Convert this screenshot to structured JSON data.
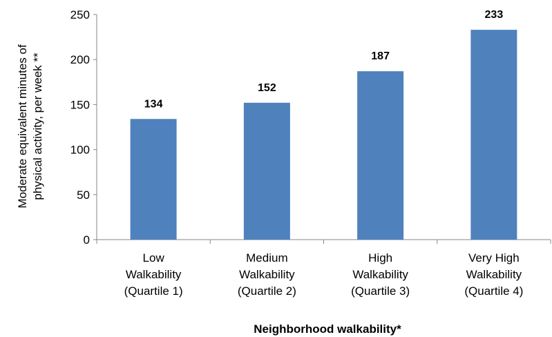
{
  "chart_data": {
    "type": "bar",
    "categories": [
      [
        "Low",
        "Walkability",
        "(Quartile 1)"
      ],
      [
        "Medium",
        "Walkability",
        "(Quartile 2)"
      ],
      [
        "High",
        "Walkability",
        "(Quartile 3)"
      ],
      [
        "Very High",
        "Walkability",
        "(Quartile 4)"
      ]
    ],
    "values": [
      134,
      152,
      187,
      233
    ],
    "data_labels": [
      "134",
      "152",
      "187",
      "233"
    ],
    "xlabel": "Neighborhood walkability*",
    "ylabel": [
      "Moderate equivalent minutes of",
      "physical activity, per week **"
    ],
    "ylim": [
      0,
      250
    ],
    "yticks": [
      0,
      50,
      100,
      150,
      200,
      250
    ],
    "grid": false,
    "legend": "none",
    "bar_color": "#4f81bd",
    "axis_color": "#868686"
  }
}
